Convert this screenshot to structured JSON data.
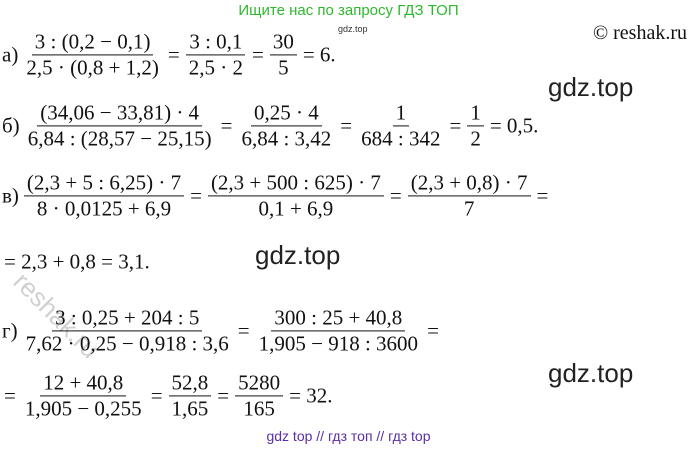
{
  "header": {
    "search_hint": "Ищите нас по запросу ГДЗ ТОП",
    "small_mark": "gdz.top",
    "copyright": "© reshak.ru"
  },
  "watermarks": [
    "gdz.top",
    "gdz.top",
    "gdz.top",
    "reshak.ru"
  ],
  "rows": [
    {
      "label": "а)",
      "items": [
        {
          "num": "3 : (0,2 − 0,1)",
          "den": "2,5 · (0,8 + 1,2)"
        },
        {
          "text": "="
        },
        {
          "num": "3 : 0,1",
          "den": "2,5 · 2"
        },
        {
          "text": "="
        },
        {
          "num": "30",
          "den": "5"
        },
        {
          "text": "= 6."
        }
      ]
    },
    {
      "label": "б)",
      "items": [
        {
          "num": "(34,06 − 33,81) · 4",
          "den": "6,84 : (28,57 − 25,15)"
        },
        {
          "text": "="
        },
        {
          "num": "0,25 · 4",
          "den": "6,84 : 3,42"
        },
        {
          "text": "="
        },
        {
          "num": "1",
          "den": "684 : 342"
        },
        {
          "text": "="
        },
        {
          "num": "1",
          "den": "2"
        },
        {
          "text": "= 0,5."
        }
      ]
    },
    {
      "label": "в)",
      "items": [
        {
          "num": "(2,3 + 5 : 6,25) · 7",
          "den": "8 · 0,0125 + 6,9"
        },
        {
          "text": "="
        },
        {
          "num": "(2,3 + 500 : 625) · 7",
          "den": "0,1 + 6,9"
        },
        {
          "text": "="
        },
        {
          "num": "(2,3 + 0,8) · 7",
          "den": "7"
        },
        {
          "text": "="
        }
      ]
    },
    {
      "items": [
        {
          "text": "= 2,3 + 0,8 = 3,1."
        }
      ]
    },
    {
      "label": "г)",
      "items": [
        {
          "num": "3 : 0,25 + 204 : 5",
          "den": "7,62 · 0,25 − 0,918 : 3,6"
        },
        {
          "text": "="
        },
        {
          "num": "300 : 25 + 40,8",
          "den": "1,905 − 918 : 3600"
        },
        {
          "text": "="
        }
      ]
    },
    {
      "items": [
        {
          "text": "="
        },
        {
          "num": "12 + 40,8",
          "den": "1,905 − 0,255"
        },
        {
          "text": "="
        },
        {
          "num": "52,8",
          "den": "1,65"
        },
        {
          "text": "="
        },
        {
          "num": "5280",
          "den": "165"
        },
        {
          "text": "= 32."
        }
      ]
    }
  ],
  "footer": "gdz top  //  гдз топ  //  гдз top"
}
